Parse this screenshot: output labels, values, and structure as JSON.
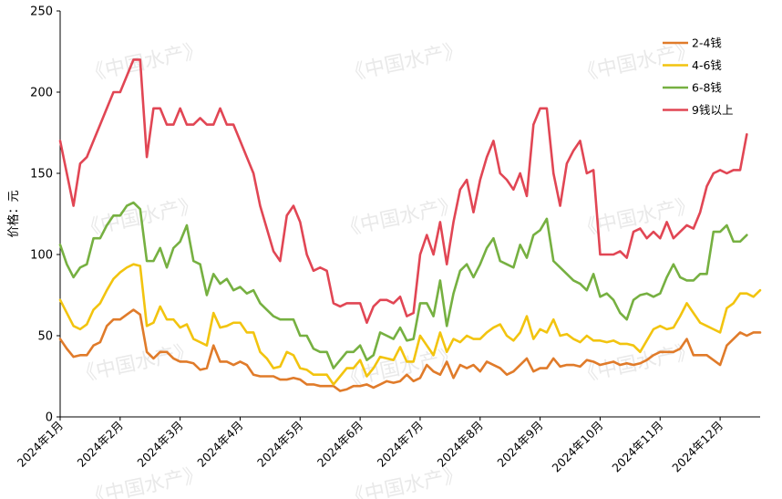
{
  "chart_data": {
    "type": "line",
    "ylabel": "价格：元",
    "ylim": [
      0,
      250
    ],
    "yticks": [
      0,
      50,
      100,
      150,
      200,
      250
    ],
    "x_labels": [
      "2024年1月",
      "2024年2月",
      "2024年3月",
      "2024年4月",
      "2024年5月",
      "2024年6月",
      "2024年7月",
      "2024年8月",
      "2024年9月",
      "2024年10月",
      "2024年11月",
      "2024年12月"
    ],
    "x_label_index": [
      0,
      9,
      18,
      27,
      36,
      45,
      54,
      63,
      72,
      81,
      90,
      99
    ],
    "grid": false,
    "legend_position": "top-right",
    "watermark": "《中国水产》",
    "series": [
      {
        "name": "2-4钱",
        "color": "#e07b2a",
        "values": [
          48,
          42,
          37,
          38,
          38,
          44,
          46,
          56,
          60,
          60,
          63,
          66,
          63,
          40,
          36,
          40,
          40,
          36,
          34,
          34,
          33,
          29,
          30,
          44,
          34,
          34,
          32,
          34,
          32,
          26,
          25,
          25,
          25,
          23,
          23,
          24,
          23,
          20,
          20,
          19,
          19,
          19,
          16,
          17,
          19,
          19,
          20,
          18,
          20,
          22,
          21,
          22,
          26,
          22,
          24,
          32,
          28,
          26,
          34,
          24,
          32,
          30,
          32,
          28,
          34,
          32,
          30,
          26,
          28,
          32,
          36,
          28,
          30,
          30,
          36,
          31,
          32,
          32,
          31,
          35,
          34,
          32,
          33,
          34,
          32,
          33,
          32,
          33,
          35,
          38,
          40,
          40,
          40,
          42,
          48,
          38,
          38,
          38,
          35,
          32,
          44,
          48,
          52,
          50,
          52,
          52
        ]
      },
      {
        "name": "4-6钱",
        "color": "#f2c40f",
        "values": [
          72,
          64,
          56,
          54,
          57,
          66,
          70,
          78,
          85,
          89,
          92,
          94,
          93,
          56,
          58,
          68,
          60,
          60,
          55,
          57,
          48,
          46,
          44,
          64,
          55,
          56,
          58,
          58,
          52,
          52,
          40,
          36,
          30,
          31,
          40,
          38,
          30,
          29,
          26,
          26,
          26,
          20,
          25,
          30,
          30,
          35,
          25,
          30,
          37,
          36,
          35,
          43,
          34,
          34,
          50,
          44,
          38,
          52,
          40,
          48,
          46,
          50,
          48,
          48,
          52,
          55,
          57,
          50,
          47,
          52,
          62,
          48,
          54,
          52,
          60,
          50,
          51,
          48,
          46,
          50,
          47,
          47,
          46,
          47,
          45,
          45,
          44,
          40,
          47,
          54,
          56,
          54,
          55,
          62,
          70,
          64,
          58,
          56,
          54,
          52,
          67,
          70,
          76,
          76,
          74,
          78
        ]
      },
      {
        "name": "6-8钱",
        "color": "#76b041",
        "values": [
          106,
          94,
          86,
          92,
          94,
          110,
          110,
          118,
          124,
          124,
          130,
          132,
          128,
          96,
          96,
          104,
          92,
          104,
          108,
          118,
          96,
          94,
          75,
          88,
          82,
          85,
          78,
          80,
          76,
          78,
          70,
          66,
          62,
          60,
          60,
          60,
          50,
          50,
          42,
          40,
          40,
          30,
          35,
          40,
          40,
          44,
          35,
          38,
          52,
          50,
          48,
          55,
          47,
          48,
          70,
          70,
          62,
          84,
          56,
          76,
          90,
          94,
          86,
          94,
          104,
          110,
          96,
          94,
          92,
          106,
          98,
          112,
          115,
          122,
          96,
          92,
          88,
          84,
          82,
          78,
          88,
          74,
          76,
          72,
          64,
          60,
          72,
          75,
          76,
          74,
          76,
          86,
          94,
          86,
          84,
          84,
          88,
          88,
          114,
          114,
          118,
          108,
          108,
          112
        ]
      },
      {
        "name": "9钱以上",
        "color": "#e14654",
        "values": [
          170,
          150,
          130,
          156,
          160,
          170,
          180,
          190,
          200,
          200,
          210,
          220,
          220,
          160,
          190,
          190,
          180,
          180,
          190,
          180,
          180,
          184,
          180,
          180,
          190,
          180,
          180,
          170,
          160,
          150,
          130,
          116,
          102,
          96,
          124,
          130,
          120,
          100,
          90,
          92,
          90,
          70,
          68,
          70,
          70,
          70,
          58,
          68,
          72,
          72,
          70,
          74,
          62,
          64,
          100,
          112,
          100,
          120,
          94,
          120,
          140,
          146,
          126,
          146,
          160,
          170,
          150,
          146,
          140,
          150,
          136,
          180,
          190,
          190,
          150,
          130,
          156,
          164,
          170,
          150,
          152,
          100,
          100,
          100,
          102,
          98,
          114,
          116,
          110,
          114,
          110,
          120,
          110,
          114,
          118,
          116,
          126,
          142,
          150,
          152,
          150,
          152,
          152,
          174
        ]
      }
    ]
  }
}
